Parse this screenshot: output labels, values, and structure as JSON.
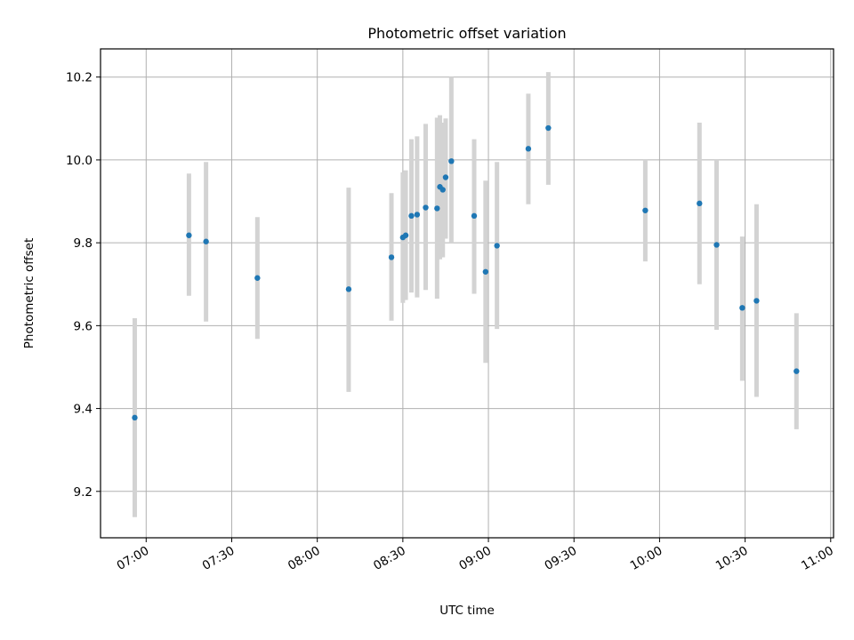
{
  "chart_data": {
    "type": "scatter",
    "title": "Photometric offset variation",
    "xlabel": "UTC time",
    "ylabel": "Photometric offset",
    "x_tick_labels": [
      "07:00",
      "07:30",
      "08:00",
      "08:30",
      "09:00",
      "09:30",
      "10:00",
      "10:30",
      "11:00"
    ],
    "x_tick_times": [
      "07:00",
      "07:30",
      "08:00",
      "08:30",
      "09:00",
      "09:30",
      "10:00",
      "10:30",
      "11:00"
    ],
    "y_tick_labels": [
      "9.2",
      "9.4",
      "9.6",
      "9.8",
      "10.0",
      "10.2"
    ],
    "y_tick_values": [
      9.2,
      9.4,
      9.6,
      9.8,
      10.0,
      10.2
    ],
    "xlim": [
      "06:44",
      "11:01"
    ],
    "ylim": [
      9.088,
      10.268
    ],
    "grid": true,
    "marker_color": "#1f77b4",
    "errorbar_color": "#d3d3d3",
    "points": [
      {
        "t": "06:56",
        "y": 9.378,
        "lo": 9.138,
        "hi": 9.618
      },
      {
        "t": "07:15",
        "y": 9.818,
        "lo": 9.672,
        "hi": 9.967
      },
      {
        "t": "07:21",
        "y": 9.803,
        "lo": 9.61,
        "hi": 9.995
      },
      {
        "t": "07:39",
        "y": 9.715,
        "lo": 9.568,
        "hi": 9.862
      },
      {
        "t": "08:11",
        "y": 9.688,
        "lo": 9.44,
        "hi": 9.933
      },
      {
        "t": "08:26",
        "y": 9.765,
        "lo": 9.612,
        "hi": 9.92
      },
      {
        "t": "08:30",
        "y": 9.813,
        "lo": 9.655,
        "hi": 9.97
      },
      {
        "t": "08:31",
        "y": 9.818,
        "lo": 9.662,
        "hi": 9.975
      },
      {
        "t": "08:33",
        "y": 9.865,
        "lo": 9.68,
        "hi": 10.05
      },
      {
        "t": "08:35",
        "y": 9.868,
        "lo": 9.668,
        "hi": 10.057
      },
      {
        "t": "08:38",
        "y": 9.885,
        "lo": 9.686,
        "hi": 10.087
      },
      {
        "t": "08:42",
        "y": 9.883,
        "lo": 9.665,
        "hi": 10.102
      },
      {
        "t": "08:43",
        "y": 9.935,
        "lo": 9.76,
        "hi": 10.108
      },
      {
        "t": "08:44",
        "y": 9.928,
        "lo": 9.765,
        "hi": 10.09
      },
      {
        "t": "08:45",
        "y": 9.958,
        "lo": 9.81,
        "hi": 10.1
      },
      {
        "t": "08:47",
        "y": 9.997,
        "lo": 9.8,
        "hi": 10.2
      },
      {
        "t": "08:55",
        "y": 9.865,
        "lo": 9.677,
        "hi": 10.05
      },
      {
        "t": "08:59",
        "y": 9.73,
        "lo": 9.51,
        "hi": 9.95
      },
      {
        "t": "09:03",
        "y": 9.793,
        "lo": 9.592,
        "hi": 9.995
      },
      {
        "t": "09:14",
        "y": 10.027,
        "lo": 9.893,
        "hi": 10.16
      },
      {
        "t": "09:21",
        "y": 10.077,
        "lo": 9.94,
        "hi": 10.212
      },
      {
        "t": "09:55",
        "y": 9.878,
        "lo": 9.755,
        "hi": 10.0
      },
      {
        "t": "10:14",
        "y": 9.895,
        "lo": 9.7,
        "hi": 10.09
      },
      {
        "t": "10:20",
        "y": 9.795,
        "lo": 9.59,
        "hi": 10.0
      },
      {
        "t": "10:29",
        "y": 9.643,
        "lo": 9.467,
        "hi": 9.815
      },
      {
        "t": "10:34",
        "y": 9.66,
        "lo": 9.428,
        "hi": 9.893
      },
      {
        "t": "10:48",
        "y": 9.49,
        "lo": 9.35,
        "hi": 9.63
      }
    ]
  }
}
